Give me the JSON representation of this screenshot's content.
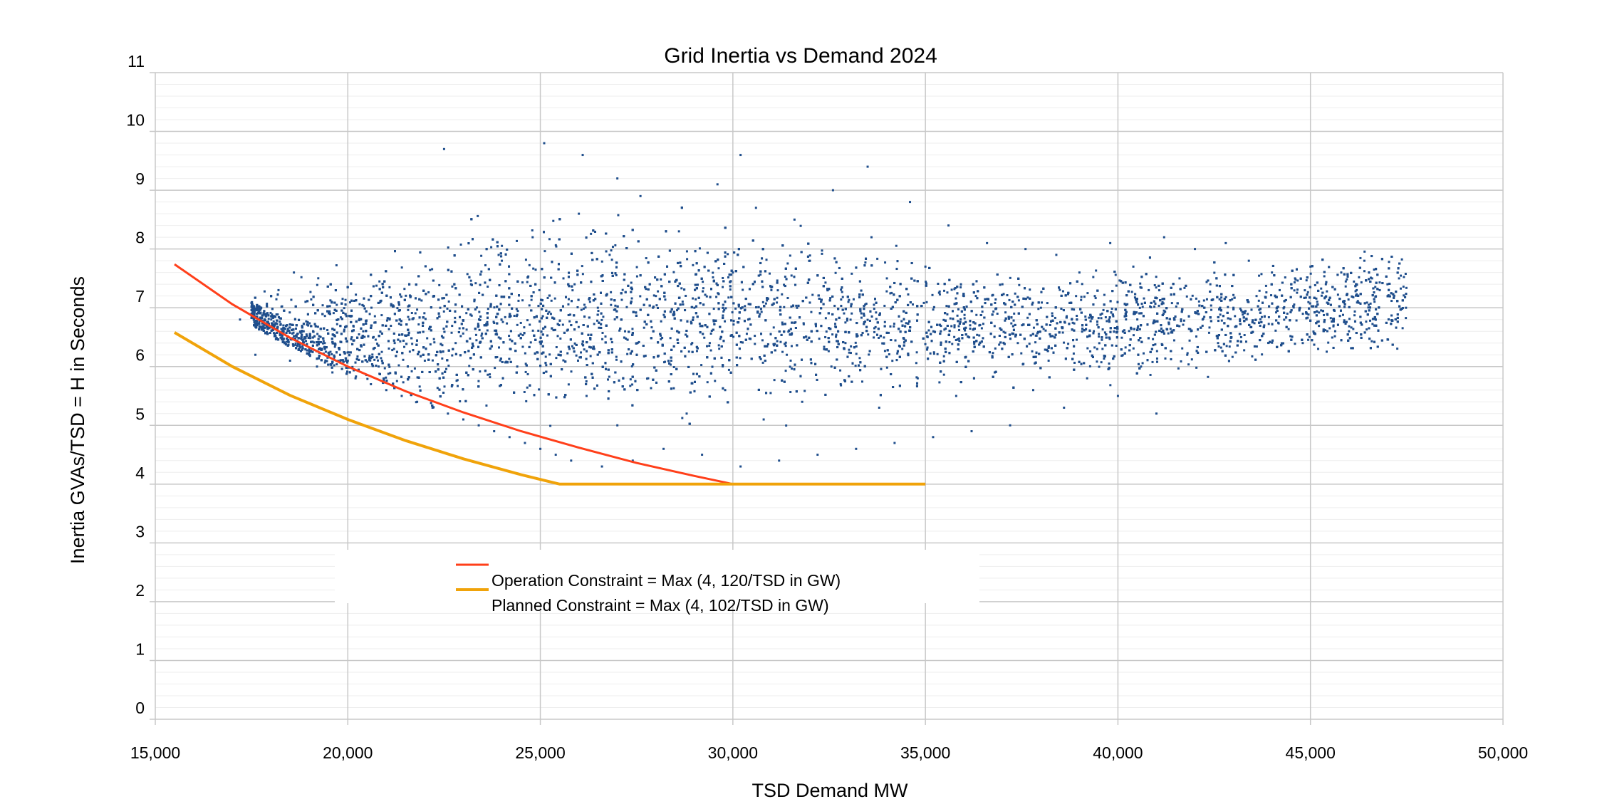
{
  "chart_data": {
    "type": "scatter",
    "title": "Grid Inertia vs Demand 2024",
    "xlabel": "TSD Demand MW",
    "ylabel": "Inertia GVAs/TSD = H in Seconds",
    "xlim": [
      15000,
      50000
    ],
    "ylim": [
      0,
      11
    ],
    "x_ticks": [
      15000,
      20000,
      25000,
      30000,
      35000,
      40000,
      45000,
      50000
    ],
    "x_tick_labels": [
      "15,000",
      "20,000",
      "25,000",
      "30,000",
      "35,000",
      "40,000",
      "45,000",
      "50,000"
    ],
    "y_ticks": [
      0,
      1,
      2,
      3,
      4,
      5,
      6,
      7,
      8,
      9,
      10,
      11
    ],
    "y_tick_labels": [
      "0",
      "1",
      "2",
      "3",
      "4",
      "5",
      "6",
      "7",
      "8",
      "9",
      "10",
      "11"
    ],
    "grid": true,
    "legend_position": "center-bottom",
    "scatter_color": "#1f4e8c",
    "scatter_points": [
      [
        17200,
        6.8
      ],
      [
        17600,
        6.2
      ],
      [
        17900,
        6.9
      ],
      [
        18200,
        7.3
      ],
      [
        18300,
        6.6
      ],
      [
        18500,
        6.1
      ],
      [
        18600,
        7.6
      ],
      [
        18800,
        6.5
      ],
      [
        19000,
        6.3
      ],
      [
        19200,
        6.0
      ],
      [
        19400,
        6.4
      ],
      [
        19600,
        5.9
      ],
      [
        19800,
        6.2
      ],
      [
        20000,
        6.1
      ],
      [
        20200,
        5.8
      ],
      [
        20400,
        6.6
      ],
      [
        20600,
        5.7
      ],
      [
        20800,
        6.0
      ],
      [
        21000,
        5.6
      ],
      [
        21200,
        6.3
      ],
      [
        21400,
        5.5
      ],
      [
        21600,
        6.8
      ],
      [
        21800,
        5.4
      ],
      [
        22000,
        6.1
      ],
      [
        22200,
        5.3
      ],
      [
        22400,
        7.0
      ],
      [
        22600,
        5.2
      ],
      [
        22800,
        6.4
      ],
      [
        23000,
        5.1
      ],
      [
        23200,
        7.4
      ],
      [
        23400,
        5.0
      ],
      [
        23600,
        6.7
      ],
      [
        23800,
        4.9
      ],
      [
        24000,
        7.8
      ],
      [
        24200,
        4.8
      ],
      [
        24400,
        6.0
      ],
      [
        24600,
        4.7
      ],
      [
        24800,
        8.2
      ],
      [
        25000,
        4.6
      ],
      [
        25200,
        6.9
      ],
      [
        25400,
        4.5
      ],
      [
        25600,
        7.5
      ],
      [
        25800,
        4.4
      ],
      [
        26000,
        8.6
      ],
      [
        26200,
        5.5
      ],
      [
        26400,
        6.3
      ],
      [
        26600,
        4.3
      ],
      [
        26800,
        7.9
      ],
      [
        27000,
        5.0
      ],
      [
        27200,
        6.6
      ],
      [
        27400,
        4.4
      ],
      [
        27600,
        8.9
      ],
      [
        27800,
        5.8
      ],
      [
        28000,
        7.2
      ],
      [
        28200,
        4.6
      ],
      [
        28400,
        6.1
      ],
      [
        28600,
        8.3
      ],
      [
        28800,
        5.2
      ],
      [
        29000,
        7.0
      ],
      [
        29200,
        4.5
      ],
      [
        29400,
        6.4
      ],
      [
        29600,
        9.1
      ],
      [
        29800,
        5.6
      ],
      [
        30000,
        7.6
      ],
      [
        30200,
        4.3
      ],
      [
        30400,
        6.8
      ],
      [
        30600,
        8.7
      ],
      [
        30800,
        5.1
      ],
      [
        31000,
        7.3
      ],
      [
        31200,
        4.4
      ],
      [
        31400,
        6.2
      ],
      [
        31600,
        8.5
      ],
      [
        31800,
        5.4
      ],
      [
        32000,
        7.8
      ],
      [
        32200,
        4.5
      ],
      [
        32400,
        6.5
      ],
      [
        32600,
        9.0
      ],
      [
        32800,
        5.7
      ],
      [
        33000,
        7.1
      ],
      [
        33200,
        4.6
      ],
      [
        33400,
        6.9
      ],
      [
        33600,
        8.2
      ],
      [
        33800,
        5.3
      ],
      [
        34000,
        7.5
      ],
      [
        34200,
        4.7
      ],
      [
        34400,
        6.3
      ],
      [
        34600,
        8.8
      ],
      [
        34800,
        5.8
      ],
      [
        35000,
        7.7
      ],
      [
        35200,
        4.8
      ],
      [
        35400,
        6.6
      ],
      [
        35600,
        8.4
      ],
      [
        35800,
        5.5
      ],
      [
        36000,
        7.2
      ],
      [
        36200,
        4.9
      ],
      [
        36400,
        6.7
      ],
      [
        36600,
        8.1
      ],
      [
        36800,
        5.9
      ],
      [
        37000,
        7.4
      ],
      [
        37200,
        5.0
      ],
      [
        37400,
        6.4
      ],
      [
        37600,
        8.0
      ],
      [
        37800,
        5.6
      ],
      [
        38000,
        7.0
      ],
      [
        38200,
        6.1
      ],
      [
        38400,
        7.9
      ],
      [
        38600,
        5.3
      ],
      [
        38800,
        6.8
      ],
      [
        39000,
        7.6
      ],
      [
        39200,
        5.8
      ],
      [
        39400,
        7.2
      ],
      [
        39600,
        6.3
      ],
      [
        39800,
        8.1
      ],
      [
        40000,
        5.5
      ],
      [
        40200,
        6.9
      ],
      [
        40400,
        7.7
      ],
      [
        40600,
        6.0
      ],
      [
        40800,
        7.3
      ],
      [
        41000,
        5.2
      ],
      [
        41200,
        8.2
      ],
      [
        41400,
        6.6
      ],
      [
        41600,
        7.5
      ],
      [
        41800,
        6.2
      ],
      [
        42000,
        8.0
      ],
      [
        42200,
        6.8
      ],
      [
        42400,
        7.4
      ],
      [
        42600,
        6.4
      ],
      [
        42800,
        8.1
      ],
      [
        43000,
        7.0
      ],
      [
        43200,
        6.5
      ],
      [
        43400,
        7.8
      ],
      [
        43600,
        7.2
      ],
      [
        43800,
        6.7
      ],
      [
        44000,
        7.6
      ],
      [
        44200,
        7.3
      ],
      [
        44400,
        6.9
      ],
      [
        44600,
        7.5
      ],
      [
        44800,
        6.4
      ],
      [
        45000,
        7.7
      ],
      [
        45200,
        6.3
      ],
      [
        45400,
        7.4
      ],
      [
        45600,
        6.7
      ],
      [
        45800,
        7.6
      ],
      [
        46000,
        6.6
      ],
      [
        46200,
        7.3
      ],
      [
        46400,
        7.8
      ],
      [
        46600,
        7.5
      ],
      [
        46800,
        7.3
      ],
      [
        47000,
        7.4
      ],
      [
        47300,
        7.5
      ],
      [
        22500,
        9.7
      ],
      [
        25100,
        9.8
      ],
      [
        26100,
        9.6
      ],
      [
        30200,
        9.6
      ],
      [
        27000,
        9.2
      ],
      [
        33500,
        9.4
      ]
    ],
    "series": [
      {
        "name": "Operation Constraint = Max (4, 120/TSD in GW)",
        "color": "#ff3f1a",
        "x": [
          15500,
          17000,
          18500,
          20000,
          21500,
          23000,
          24500,
          26000,
          27500,
          29000,
          30000,
          32500,
          35000
        ],
        "y": [
          7.74,
          7.06,
          6.49,
          6.0,
          5.58,
          5.22,
          4.9,
          4.62,
          4.36,
          4.14,
          4.0,
          4.0,
          4.0
        ]
      },
      {
        "name": "Planned Constraint = Max (4, 102/TSD in GW)",
        "color": "#f0a30a",
        "x": [
          15500,
          17000,
          18500,
          20000,
          21500,
          23000,
          24500,
          25500,
          28000,
          30000,
          32500,
          35000
        ],
        "y": [
          6.58,
          6.0,
          5.51,
          5.1,
          4.74,
          4.43,
          4.16,
          4.0,
          4.0,
          4.0,
          4.0,
          4.0
        ]
      }
    ]
  }
}
